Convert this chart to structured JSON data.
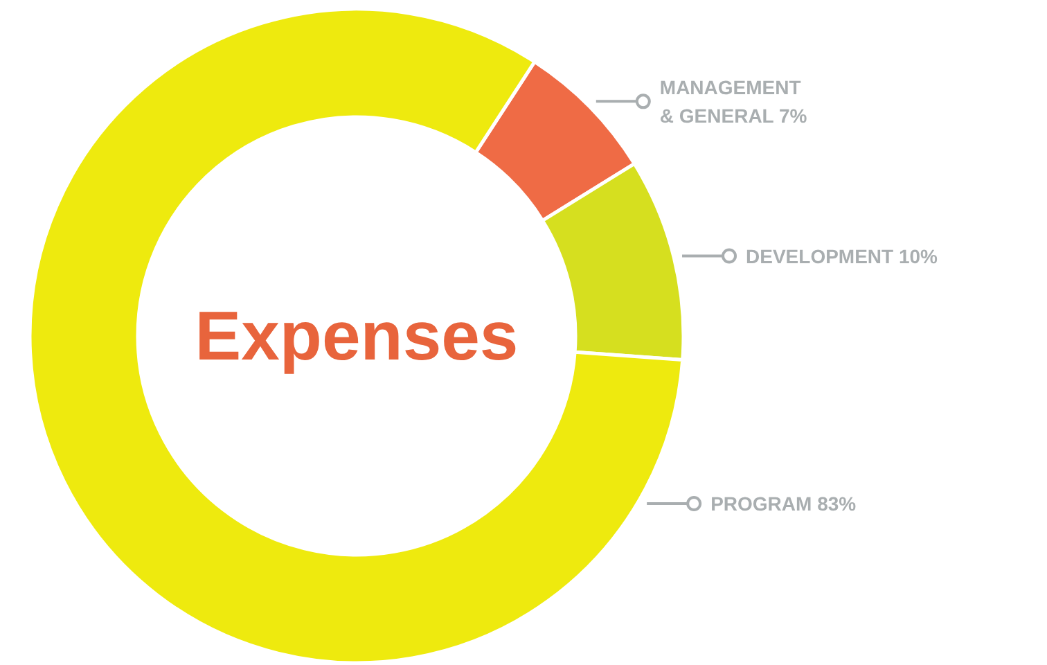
{
  "chart_data": {
    "type": "donut",
    "title": "Expenses",
    "categories": [
      "MANAGEMENT & GENERAL",
      "DEVELOPMENT",
      "PROGRAM"
    ],
    "values": [
      7,
      10,
      83
    ],
    "value_labels": [
      "7%",
      "10%",
      "83%"
    ],
    "colors": [
      "#ef6b45",
      "#d6df1f",
      "#eeea0e"
    ]
  }
}
